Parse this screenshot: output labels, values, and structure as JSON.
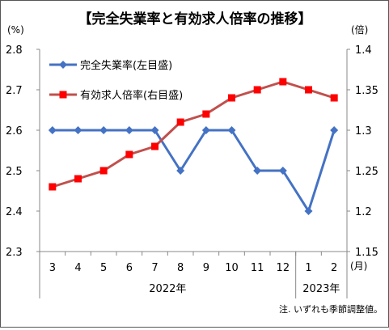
{
  "chart_data": {
    "type": "line",
    "title": "【完全失業率と有効求人倍率の推移】",
    "left_unit": "(%)",
    "right_unit": "(倍)",
    "month_unit": "(月)",
    "categories": [
      "3",
      "4",
      "5",
      "6",
      "7",
      "8",
      "9",
      "10",
      "11",
      "12",
      "1",
      "2"
    ],
    "year_labels": [
      {
        "label": "2022年",
        "from": 0,
        "to": 9
      },
      {
        "label": "2023年",
        "from": 10,
        "to": 11
      }
    ],
    "left_axis": {
      "min": 2.3,
      "max": 2.8,
      "step": 0.1,
      "ticks": [
        "2.3",
        "2.4",
        "2.5",
        "2.6",
        "2.7",
        "2.8"
      ]
    },
    "right_axis": {
      "min": 1.15,
      "max": 1.4,
      "step": 0.05,
      "ticks": [
        "1.15",
        "1.2",
        "1.25",
        "1.3",
        "1.35",
        "1.4"
      ]
    },
    "series": [
      {
        "name": "完全失業率(左目盛)",
        "axis": "left",
        "marker": "diamond",
        "color": "#4472C4",
        "values": [
          2.6,
          2.6,
          2.6,
          2.6,
          2.6,
          2.5,
          2.6,
          2.6,
          2.5,
          2.5,
          2.4,
          2.6
        ]
      },
      {
        "name": "有効求人倍率(右目盛)",
        "axis": "right",
        "marker": "square",
        "color": "#C0504D",
        "marker_color": "#FF0000",
        "values": [
          1.23,
          1.24,
          1.25,
          1.27,
          1.28,
          1.31,
          1.32,
          1.34,
          1.35,
          1.36,
          1.35,
          1.34
        ]
      }
    ],
    "grid": false,
    "legend_position": "top-left",
    "note": "注. いずれも季節調整値。"
  }
}
